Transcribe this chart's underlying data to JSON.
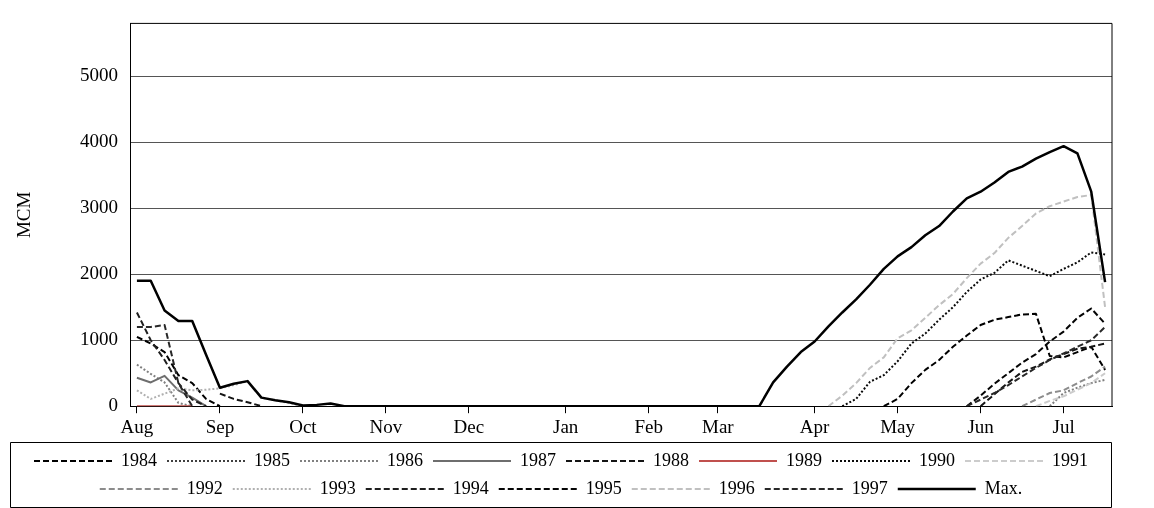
{
  "chart_data": {
    "type": "line",
    "ylabel": "MCM",
    "ylim": [
      0,
      5800
    ],
    "yticks": [
      0,
      1000,
      2000,
      3000,
      4000,
      5000
    ],
    "categories": [
      "Aug",
      null,
      null,
      null,
      null,
      null,
      "Sep",
      null,
      null,
      null,
      null,
      null,
      "Oct",
      null,
      null,
      null,
      null,
      null,
      "Nov",
      null,
      null,
      null,
      null,
      null,
      "Dec",
      null,
      null,
      null,
      null,
      null,
      null,
      "Jan",
      null,
      null,
      null,
      null,
      null,
      "Feb",
      null,
      null,
      null,
      null,
      "Mar",
      null,
      null,
      null,
      null,
      null,
      null,
      "Apr",
      null,
      null,
      null,
      null,
      null,
      "May",
      null,
      null,
      null,
      null,
      null,
      "Jun",
      null,
      null,
      null,
      null,
      null,
      "Jul",
      null,
      null,
      null
    ],
    "grid": "y",
    "legend": "bottom",
    "series": [
      {
        "name": "1984",
        "color": "#000000",
        "line_style": "dashed",
        "values": [
          1050,
          950,
          820,
          470,
          350,
          110,
          0,
          null,
          null,
          null,
          null,
          null,
          null,
          null,
          null,
          null,
          null,
          null,
          null,
          null,
          null,
          null,
          null,
          null,
          null,
          null,
          null,
          null,
          null,
          null,
          null,
          null,
          null,
          null,
          null,
          null,
          null,
          null,
          null,
          null,
          null,
          null,
          null,
          null,
          null,
          null,
          null,
          null,
          null,
          null,
          null,
          null,
          null,
          null,
          0,
          110,
          350,
          550,
          700,
          900,
          1070,
          1230,
          1310,
          1350,
          1390,
          1400,
          760,
          740,
          820,
          900,
          550
        ]
      },
      {
        "name": "1985",
        "color": "#404040",
        "line_style": "dotted",
        "values": [
          null,
          null,
          null,
          null,
          null,
          null,
          null,
          null,
          null,
          null,
          null,
          null,
          null,
          null,
          null,
          null,
          null,
          null,
          null,
          null,
          null,
          null,
          null,
          null,
          null,
          null,
          null,
          null,
          null,
          null,
          null,
          null,
          null,
          null,
          null,
          null,
          null,
          null,
          null,
          null,
          null,
          null,
          null,
          null,
          null,
          null,
          null,
          null,
          null,
          null,
          null,
          null,
          null,
          null,
          null,
          null,
          null,
          null,
          null,
          null,
          null,
          null,
          null,
          null,
          null,
          null,
          null,
          null,
          null,
          null,
          null
        ]
      },
      {
        "name": "1986",
        "color": "#808080",
        "line_style": "dotted",
        "values": [
          630,
          490,
          360,
          50,
          0,
          null,
          null,
          null,
          null,
          null,
          null,
          null,
          null,
          null,
          null,
          null,
          null,
          null,
          null,
          null,
          null,
          null,
          null,
          null,
          null,
          null,
          null,
          null,
          null,
          null,
          null,
          null,
          null,
          null,
          null,
          null,
          null,
          null,
          null,
          null,
          null,
          null,
          null,
          null,
          null,
          null,
          null,
          null,
          null,
          null,
          null,
          null,
          null,
          null,
          null,
          null,
          null,
          null,
          null,
          null,
          null,
          null,
          null,
          null,
          null,
          null,
          0,
          200,
          280,
          350,
          400
        ]
      },
      {
        "name": "1987",
        "color": "#6e6e6e",
        "line_style": "solid",
        "values": [
          430,
          360,
          460,
          240,
          130,
          0,
          null,
          null,
          null,
          null,
          null,
          null,
          null,
          null,
          null,
          null,
          null,
          null,
          null,
          null,
          null,
          null,
          null,
          null,
          null,
          null,
          null,
          null,
          null,
          null,
          null,
          null,
          null,
          null,
          null,
          null,
          null,
          null,
          null,
          null,
          null,
          null,
          null,
          null,
          null,
          null,
          null,
          null,
          null,
          null,
          null,
          null,
          null,
          null,
          null,
          null,
          null,
          null,
          null,
          null,
          null,
          null,
          null,
          null,
          null,
          null,
          null,
          null,
          null,
          null,
          null
        ]
      },
      {
        "name": "1988",
        "color": "#141414",
        "line_style": "dashed",
        "values": [
          null,
          null,
          null,
          null,
          null,
          null,
          190,
          110,
          60,
          0,
          null,
          null,
          null,
          null,
          null,
          null,
          null,
          null,
          null,
          null,
          null,
          null,
          null,
          null,
          null,
          null,
          null,
          null,
          null,
          null,
          null,
          null,
          null,
          null,
          null,
          null,
          null,
          null,
          null,
          null,
          null,
          null,
          null,
          null,
          null,
          null,
          null,
          null,
          null,
          null,
          null,
          null,
          null,
          null,
          null,
          null,
          null,
          null,
          null,
          null,
          null,
          0,
          180,
          360,
          520,
          600,
          710,
          790,
          870,
          900,
          950
        ]
      },
      {
        "name": "1989",
        "color": "#c0504d",
        "line_style": "solid",
        "values": [
          0,
          0,
          0,
          0,
          0,
          null,
          null,
          null,
          null,
          null,
          null,
          null,
          null,
          null,
          null,
          null,
          null,
          null,
          null,
          null,
          null,
          null,
          null,
          null,
          null,
          null,
          null,
          null,
          null,
          null,
          null,
          null,
          null,
          null,
          null,
          null,
          null,
          null,
          null,
          null,
          null,
          null,
          null,
          null,
          null,
          null,
          null,
          null,
          null,
          null,
          null,
          null,
          null,
          null,
          null,
          null,
          null,
          null,
          null,
          null,
          null,
          null,
          null,
          null,
          null,
          null,
          null,
          null,
          null,
          null,
          null
        ]
      },
      {
        "name": "1990",
        "color": "#0a0a0a",
        "line_style": "dotted",
        "values": [
          null,
          null,
          null,
          null,
          null,
          null,
          null,
          null,
          null,
          null,
          null,
          null,
          null,
          null,
          null,
          null,
          null,
          null,
          null,
          null,
          null,
          null,
          null,
          null,
          null,
          null,
          null,
          null,
          null,
          null,
          null,
          null,
          null,
          null,
          null,
          null,
          null,
          null,
          null,
          null,
          null,
          null,
          null,
          null,
          null,
          null,
          null,
          null,
          null,
          null,
          null,
          0,
          110,
          370,
          470,
          680,
          950,
          1100,
          1310,
          1500,
          1730,
          1920,
          2020,
          2210,
          2130,
          2050,
          1970,
          2080,
          2180,
          2330,
          2300
        ]
      },
      {
        "name": "1991",
        "color": "#cccccc",
        "line_style": "dashed",
        "values": [
          null,
          null,
          null,
          null,
          null,
          null,
          null,
          null,
          null,
          null,
          null,
          null,
          null,
          null,
          null,
          null,
          null,
          null,
          null,
          null,
          null,
          null,
          null,
          null,
          null,
          null,
          null,
          null,
          null,
          null,
          null,
          null,
          null,
          null,
          null,
          null,
          null,
          null,
          null,
          null,
          null,
          null,
          null,
          null,
          null,
          null,
          null,
          null,
          null,
          null,
          null,
          null,
          null,
          null,
          null,
          null,
          null,
          null,
          null,
          null,
          null,
          null,
          null,
          null,
          null,
          0,
          80,
          150,
          250,
          350,
          500
        ]
      },
      {
        "name": "1992",
        "color": "#8c8c8c",
        "line_style": "dashed",
        "values": [
          null,
          null,
          null,
          null,
          null,
          null,
          null,
          null,
          null,
          null,
          null,
          null,
          null,
          null,
          null,
          null,
          null,
          null,
          null,
          null,
          null,
          null,
          null,
          null,
          null,
          null,
          null,
          null,
          null,
          null,
          null,
          null,
          null,
          null,
          null,
          null,
          null,
          null,
          null,
          null,
          null,
          null,
          null,
          null,
          null,
          null,
          null,
          null,
          null,
          null,
          null,
          null,
          null,
          null,
          null,
          null,
          null,
          null,
          null,
          null,
          null,
          null,
          null,
          null,
          0,
          100,
          200,
          240,
          350,
          450,
          600
        ]
      },
      {
        "name": "1993",
        "color": "#b0b0b0",
        "line_style": "dotted",
        "values": [
          240,
          110,
          190,
          270,
          240,
          250,
          270,
          320,
          380,
          130,
          90,
          50,
          0,
          null,
          null,
          null,
          null,
          null,
          null,
          null,
          null,
          null,
          null,
          null,
          null,
          null,
          null,
          null,
          null,
          null,
          null,
          null,
          null,
          null,
          null,
          null,
          null,
          null,
          null,
          null,
          null,
          null,
          null,
          null,
          null,
          null,
          null,
          null,
          null,
          null,
          null,
          null,
          null,
          null,
          null,
          null,
          null,
          null,
          null,
          null,
          null,
          null,
          null,
          null,
          null,
          null,
          null,
          null,
          null,
          null,
          null
        ]
      },
      {
        "name": "1994",
        "color": "#1e1e1e",
        "line_style": "dashed",
        "values": [
          1420,
          1000,
          700,
          350,
          100,
          0,
          null,
          null,
          null,
          null,
          null,
          null,
          null,
          null,
          null,
          null,
          null,
          null,
          null,
          null,
          null,
          null,
          null,
          null,
          null,
          null,
          null,
          null,
          null,
          null,
          null,
          null,
          null,
          null,
          null,
          null,
          null,
          null,
          null,
          null,
          null,
          null,
          null,
          null,
          null,
          null,
          null,
          null,
          null,
          null,
          null,
          null,
          null,
          null,
          null,
          null,
          null,
          null,
          null,
          null,
          null,
          null,
          null,
          null,
          null,
          null,
          null,
          null,
          null,
          null,
          null
        ]
      },
      {
        "name": "1995",
        "color": "#050505",
        "line_style": "dashed",
        "values": [
          null,
          null,
          null,
          null,
          null,
          null,
          null,
          null,
          null,
          null,
          null,
          null,
          null,
          null,
          null,
          null,
          null,
          null,
          null,
          null,
          null,
          null,
          null,
          null,
          null,
          null,
          null,
          null,
          null,
          null,
          null,
          null,
          null,
          null,
          null,
          null,
          null,
          null,
          null,
          null,
          null,
          null,
          null,
          null,
          null,
          null,
          null,
          null,
          null,
          null,
          null,
          null,
          null,
          null,
          null,
          null,
          null,
          null,
          null,
          null,
          0,
          160,
          340,
          500,
          660,
          790,
          980,
          1130,
          1340,
          1480,
          1250
        ]
      },
      {
        "name": "1996",
        "color": "#c0c0c0",
        "line_style": "dashed",
        "values": [
          null,
          null,
          null,
          null,
          null,
          null,
          null,
          null,
          null,
          null,
          null,
          null,
          null,
          null,
          null,
          null,
          null,
          null,
          null,
          null,
          null,
          null,
          null,
          null,
          null,
          null,
          null,
          null,
          null,
          null,
          null,
          null,
          null,
          null,
          null,
          null,
          null,
          null,
          null,
          null,
          null,
          null,
          null,
          null,
          null,
          null,
          null,
          null,
          null,
          null,
          0,
          160,
          350,
          580,
          740,
          1030,
          1150,
          1340,
          1530,
          1700,
          1940,
          2160,
          2320,
          2550,
          2730,
          2920,
          3030,
          3100,
          3170,
          3200,
          1500
        ]
      },
      {
        "name": "1997",
        "color": "#282828",
        "line_style": "dashed",
        "values": [
          1200,
          1200,
          1230,
          350,
          0,
          null,
          null,
          null,
          null,
          null,
          null,
          null,
          null,
          null,
          null,
          null,
          null,
          null,
          null,
          null,
          null,
          null,
          null,
          null,
          null,
          null,
          null,
          null,
          null,
          null,
          null,
          null,
          null,
          null,
          null,
          null,
          null,
          null,
          null,
          null,
          null,
          null,
          null,
          null,
          null,
          null,
          null,
          null,
          null,
          null,
          null,
          null,
          null,
          null,
          null,
          null,
          null,
          null,
          null,
          null,
          0,
          100,
          200,
          320,
          450,
          580,
          700,
          800,
          900,
          1000,
          1200
        ]
      },
      {
        "name": "Max.",
        "color": "#000000",
        "line_style": "solid",
        "values": [
          1900,
          1900,
          1450,
          1290,
          1290,
          780,
          280,
          340,
          380,
          130,
          90,
          60,
          10,
          20,
          40,
          0,
          0,
          0,
          0,
          0,
          0,
          0,
          0,
          0,
          0,
          0,
          0,
          0,
          0,
          0,
          0,
          0,
          0,
          0,
          0,
          0,
          0,
          0,
          0,
          0,
          0,
          0,
          0,
          0,
          0,
          0,
          360,
          600,
          820,
          980,
          1210,
          1420,
          1620,
          1840,
          2080,
          2270,
          2410,
          2590,
          2730,
          2950,
          3150,
          3250,
          3390,
          3550,
          3630,
          3750,
          3850,
          3940,
          3830,
          3250,
          1880
        ]
      }
    ]
  }
}
